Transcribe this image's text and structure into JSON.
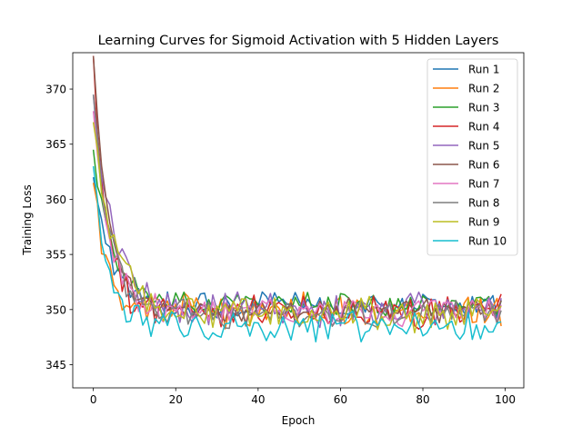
{
  "chart_data": {
    "type": "line",
    "title": "Learning Curves for Sigmoid Activation with 5 Hidden Layers",
    "xlabel": "Epoch",
    "ylabel": "Training Loss",
    "xlim": [
      -5,
      104.5
    ],
    "ylim": [
      342.9,
      373.3
    ],
    "xticks": [
      0,
      20,
      40,
      60,
      80,
      100
    ],
    "yticks": [
      345,
      350,
      355,
      360,
      365,
      370
    ],
    "grid": false,
    "legend_position": "top-right",
    "series": [
      {
        "name": "Run 1",
        "color": "#1f77b4",
        "start": 362.0,
        "plateau": 350.4,
        "decay": 4.2,
        "noise": 0.8,
        "seed": 11
      },
      {
        "name": "Run 2",
        "color": "#ff7f0e",
        "start": 361.5,
        "plateau": 349.8,
        "decay": 3.5,
        "noise": 1.1,
        "seed": 23
      },
      {
        "name": "Run 3",
        "color": "#2ca02c",
        "start": 364.5,
        "plateau": 350.5,
        "decay": 4.5,
        "noise": 0.7,
        "seed": 37
      },
      {
        "name": "Run 4",
        "color": "#d62728",
        "start": 373.0,
        "plateau": 349.8,
        "decay": 3.2,
        "noise": 1.0,
        "seed": 41
      },
      {
        "name": "Run 5",
        "color": "#9467bd",
        "start": 369.5,
        "plateau": 350.0,
        "decay": 5.0,
        "noise": 1.0,
        "seed": 53
      },
      {
        "name": "Run 6",
        "color": "#8c564b",
        "start": 373.0,
        "plateau": 349.9,
        "decay": 3.8,
        "noise": 0.7,
        "seed": 67
      },
      {
        "name": "Run 7",
        "color": "#e377c2",
        "start": 368.0,
        "plateau": 349.8,
        "decay": 4.0,
        "noise": 0.8,
        "seed": 71
      },
      {
        "name": "Run 8",
        "color": "#7f7f7f",
        "start": 369.5,
        "plateau": 349.6,
        "decay": 4.0,
        "noise": 0.9,
        "seed": 83
      },
      {
        "name": "Run 9",
        "color": "#bcbd22",
        "start": 367.0,
        "plateau": 349.5,
        "decay": 5.0,
        "noise": 1.1,
        "seed": 97
      },
      {
        "name": "Run 10",
        "color": "#17becf",
        "start": 363.0,
        "plateau": 348.6,
        "decay": 3.3,
        "noise": 0.9,
        "seed": 101
      }
    ]
  }
}
